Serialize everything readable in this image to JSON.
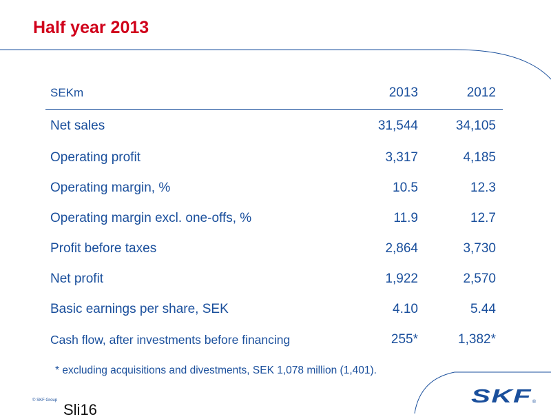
{
  "slide": {
    "title": "Half year 2013",
    "footnote": "* excluding acquisitions and divestments, SEK 1,078 million (1,401).",
    "copyright": "© SKF Group",
    "slide_number": "Sli16"
  },
  "table": {
    "headers": [
      "SEKm",
      "2013",
      "2012"
    ],
    "rows": [
      {
        "label": "Net sales",
        "y2013": "31,544",
        "y2012": "34,105"
      },
      {
        "label": "Operating profit",
        "y2013": "3,317",
        "y2012": "4,185"
      },
      {
        "label": "Operating margin, %",
        "y2013": "10.5",
        "y2012": "12.3"
      },
      {
        "label": "Operating margin excl. one-offs, %",
        "y2013": "11.9",
        "y2012": "12.7"
      },
      {
        "label": "Profit before taxes",
        "y2013": "2,864",
        "y2012": "3,730"
      },
      {
        "label": "Net profit",
        "y2013": "1,922",
        "y2012": "2,570"
      },
      {
        "label": "Basic earnings per share, SEK",
        "y2013": "4.10",
        "y2012": "5.44"
      },
      {
        "label": "Cash flow, after investments before financing",
        "y2013": "255*",
        "y2012": "1,382*"
      }
    ]
  },
  "logo": {
    "text": "SKF",
    "registered_mark": "®",
    "color": "#1a4f9c"
  },
  "colors": {
    "title": "#d0001a",
    "text": "#1a4f9c",
    "decor_lines": "#1a4f9c"
  }
}
